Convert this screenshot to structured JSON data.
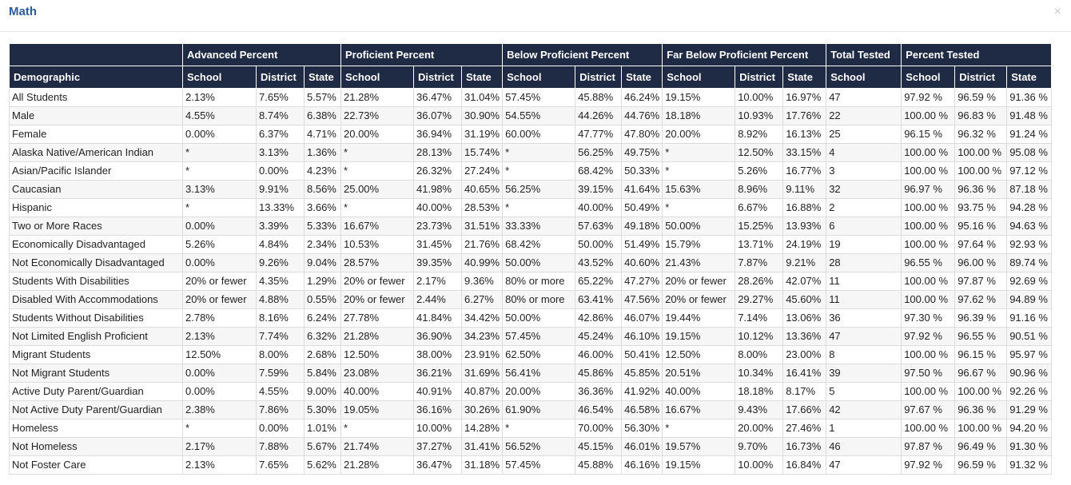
{
  "modal": {
    "title": "Math",
    "close_label": "×"
  },
  "table": {
    "group_headers": [
      "",
      "Advanced Percent",
      "Proficient Percent",
      "Below Proficient Percent",
      "Far Below Proficient Percent",
      "Total Tested",
      "Percent Tested"
    ],
    "sub_headers": [
      "Demographic",
      "School",
      "District",
      "State",
      "School",
      "District",
      "State",
      "School",
      "District",
      "State",
      "School",
      "District",
      "State",
      "School",
      "School",
      "District",
      "State"
    ],
    "rows": [
      [
        "All Students",
        "2.13%",
        "7.65%",
        "5.57%",
        "21.28%",
        "36.47%",
        "31.04%",
        "57.45%",
        "45.88%",
        "46.24%",
        "19.15%",
        "10.00%",
        "16.97%",
        "47",
        "97.92 %",
        "96.59 %",
        "91.36 %"
      ],
      [
        "Male",
        "4.55%",
        "8.74%",
        "6.38%",
        "22.73%",
        "36.07%",
        "30.90%",
        "54.55%",
        "44.26%",
        "44.76%",
        "18.18%",
        "10.93%",
        "17.76%",
        "22",
        "100.00 %",
        "96.83 %",
        "91.48 %"
      ],
      [
        "Female",
        "0.00%",
        "6.37%",
        "4.71%",
        "20.00%",
        "36.94%",
        "31.19%",
        "60.00%",
        "47.77%",
        "47.80%",
        "20.00%",
        "8.92%",
        "16.13%",
        "25",
        "96.15 %",
        "96.32 %",
        "91.24 %"
      ],
      [
        "Alaska Native/American Indian",
        "*",
        "3.13%",
        "1.36%",
        "*",
        "28.13%",
        "15.74%",
        "*",
        "56.25%",
        "49.75%",
        "*",
        "12.50%",
        "33.15%",
        "4",
        "100.00 %",
        "100.00 %",
        "95.08 %"
      ],
      [
        "Asian/Pacific Islander",
        "*",
        "0.00%",
        "4.23%",
        "*",
        "26.32%",
        "27.24%",
        "*",
        "68.42%",
        "50.33%",
        "*",
        "5.26%",
        "16.77%",
        "3",
        "100.00 %",
        "100.00 %",
        "97.12 %"
      ],
      [
        "Caucasian",
        "3.13%",
        "9.91%",
        "8.56%",
        "25.00%",
        "41.98%",
        "40.65%",
        "56.25%",
        "39.15%",
        "41.64%",
        "15.63%",
        "8.96%",
        "9.11%",
        "32",
        "96.97 %",
        "96.36 %",
        "87.18 %"
      ],
      [
        "Hispanic",
        "*",
        "13.33%",
        "3.66%",
        "*",
        "40.00%",
        "28.53%",
        "*",
        "40.00%",
        "50.49%",
        "*",
        "6.67%",
        "16.88%",
        "2",
        "100.00 %",
        "93.75 %",
        "94.28 %"
      ],
      [
        "Two or More Races",
        "0.00%",
        "3.39%",
        "5.33%",
        "16.67%",
        "23.73%",
        "31.51%",
        "33.33%",
        "57.63%",
        "49.18%",
        "50.00%",
        "15.25%",
        "13.93%",
        "6",
        "100.00 %",
        "95.16 %",
        "94.63 %"
      ],
      [
        "Economically Disadvantaged",
        "5.26%",
        "4.84%",
        "2.34%",
        "10.53%",
        "31.45%",
        "21.76%",
        "68.42%",
        "50.00%",
        "51.49%",
        "15.79%",
        "13.71%",
        "24.19%",
        "19",
        "100.00 %",
        "97.64 %",
        "92.93 %"
      ],
      [
        "Not Economically Disadvantaged",
        "0.00%",
        "9.26%",
        "9.04%",
        "28.57%",
        "39.35%",
        "40.99%",
        "50.00%",
        "43.52%",
        "40.60%",
        "21.43%",
        "7.87%",
        "9.21%",
        "28",
        "96.55 %",
        "96.00 %",
        "89.74 %"
      ],
      [
        "Students With Disabilities",
        "20% or fewer",
        "4.35%",
        "1.29%",
        "20% or fewer",
        "2.17%",
        "9.36%",
        "80% or more",
        "65.22%",
        "47.27%",
        "20% or fewer",
        "28.26%",
        "42.07%",
        "11",
        "100.00 %",
        "97.87 %",
        "92.69 %"
      ],
      [
        "Disabled With Accommodations",
        "20% or fewer",
        "4.88%",
        "0.55%",
        "20% or fewer",
        "2.44%",
        "6.27%",
        "80% or more",
        "63.41%",
        "47.56%",
        "20% or fewer",
        "29.27%",
        "45.60%",
        "11",
        "100.00 %",
        "97.62 %",
        "94.89 %"
      ],
      [
        "Students Without Disabilities",
        "2.78%",
        "8.16%",
        "6.24%",
        "27.78%",
        "41.84%",
        "34.42%",
        "50.00%",
        "42.86%",
        "46.07%",
        "19.44%",
        "7.14%",
        "13.06%",
        "36",
        "97.30 %",
        "96.39 %",
        "91.16 %"
      ],
      [
        "Not Limited English Proficient",
        "2.13%",
        "7.74%",
        "6.32%",
        "21.28%",
        "36.90%",
        "34.23%",
        "57.45%",
        "45.24%",
        "46.10%",
        "19.15%",
        "10.12%",
        "13.36%",
        "47",
        "97.92 %",
        "96.55 %",
        "90.51 %"
      ],
      [
        "Migrant Students",
        "12.50%",
        "8.00%",
        "2.68%",
        "12.50%",
        "38.00%",
        "23.91%",
        "62.50%",
        "46.00%",
        "50.41%",
        "12.50%",
        "8.00%",
        "23.00%",
        "8",
        "100.00 %",
        "96.15 %",
        "95.97 %"
      ],
      [
        "Not Migrant Students",
        "0.00%",
        "7.59%",
        "5.84%",
        "23.08%",
        "36.21%",
        "31.69%",
        "56.41%",
        "45.86%",
        "45.85%",
        "20.51%",
        "10.34%",
        "16.41%",
        "39",
        "97.50 %",
        "96.67 %",
        "90.96 %"
      ],
      [
        "Active Duty Parent/Guardian",
        "0.00%",
        "4.55%",
        "9.00%",
        "40.00%",
        "40.91%",
        "40.87%",
        "20.00%",
        "36.36%",
        "41.92%",
        "40.00%",
        "18.18%",
        "8.17%",
        "5",
        "100.00 %",
        "100.00 %",
        "92.26 %"
      ],
      [
        "Not Active Duty Parent/Guardian",
        "2.38%",
        "7.86%",
        "5.30%",
        "19.05%",
        "36.16%",
        "30.26%",
        "61.90%",
        "46.54%",
        "46.58%",
        "16.67%",
        "9.43%",
        "17.66%",
        "42",
        "97.67 %",
        "96.36 %",
        "91.29 %"
      ],
      [
        "Homeless",
        "*",
        "0.00%",
        "1.01%",
        "*",
        "10.00%",
        "14.28%",
        "*",
        "70.00%",
        "56.30%",
        "*",
        "20.00%",
        "27.46%",
        "1",
        "100.00 %",
        "100.00 %",
        "94.20 %"
      ],
      [
        "Not Homeless",
        "2.17%",
        "7.88%",
        "5.67%",
        "21.74%",
        "37.27%",
        "31.41%",
        "56.52%",
        "45.15%",
        "46.01%",
        "19.57%",
        "9.70%",
        "16.73%",
        "46",
        "97.87 %",
        "96.49 %",
        "91.30 %"
      ],
      [
        "Not Foster Care",
        "2.13%",
        "7.65%",
        "5.62%",
        "21.28%",
        "36.47%",
        "31.18%",
        "57.45%",
        "45.88%",
        "46.16%",
        "19.15%",
        "10.00%",
        "16.84%",
        "47",
        "97.92 %",
        "96.59 %",
        "91.32 %"
      ]
    ]
  }
}
